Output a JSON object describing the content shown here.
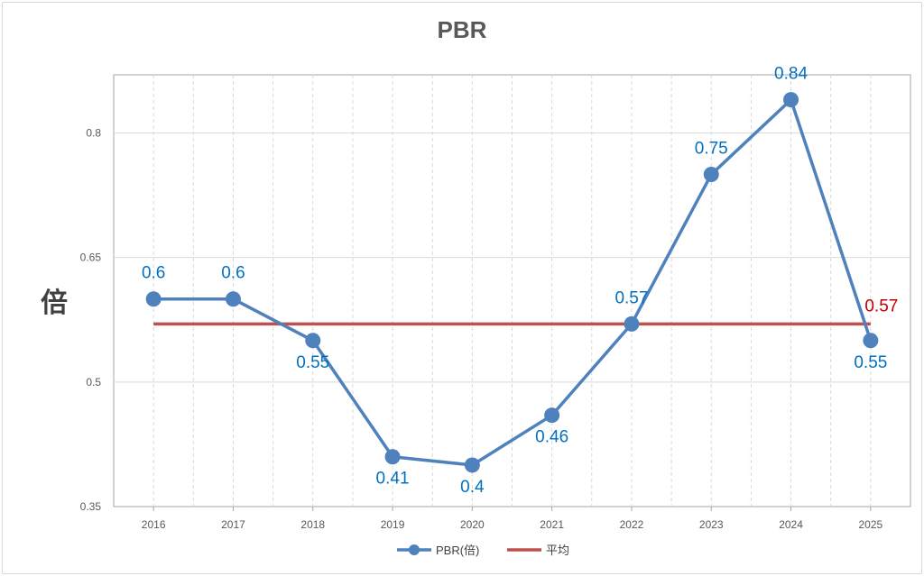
{
  "chart_data": {
    "type": "line",
    "title": "PBR",
    "ylabel": "倍",
    "xlabel": "",
    "categories": [
      "2016",
      "2017",
      "2018",
      "2019",
      "2020",
      "2021",
      "2022",
      "2023",
      "2024",
      "2025"
    ],
    "series": [
      {
        "name": "PBR(倍)",
        "values": [
          0.6,
          0.6,
          0.55,
          0.41,
          0.4,
          0.46,
          0.57,
          0.75,
          0.84,
          0.55
        ],
        "labels": [
          "0.6",
          "0.6",
          "0.55",
          "0.41",
          "0.4",
          "0.46",
          "0.57",
          "0.75",
          "0.84",
          "0.55"
        ],
        "color": "#4f81bd",
        "label_color": "#0070c0"
      },
      {
        "name": "平均",
        "values": [
          0.57,
          0.57,
          0.57,
          0.57,
          0.57,
          0.57,
          0.57,
          0.57,
          0.57,
          0.57
        ],
        "end_label": "0.57",
        "color": "#c0504d",
        "label_color": "#c00000"
      }
    ],
    "ylim": [
      0.35,
      0.87
    ],
    "yticks": [
      0.35,
      0.5,
      0.65,
      0.8
    ],
    "ytick_labels": [
      "0.35",
      "0.5",
      "0.65",
      "0.8"
    ],
    "grid": true,
    "legend_position": "bottom"
  }
}
